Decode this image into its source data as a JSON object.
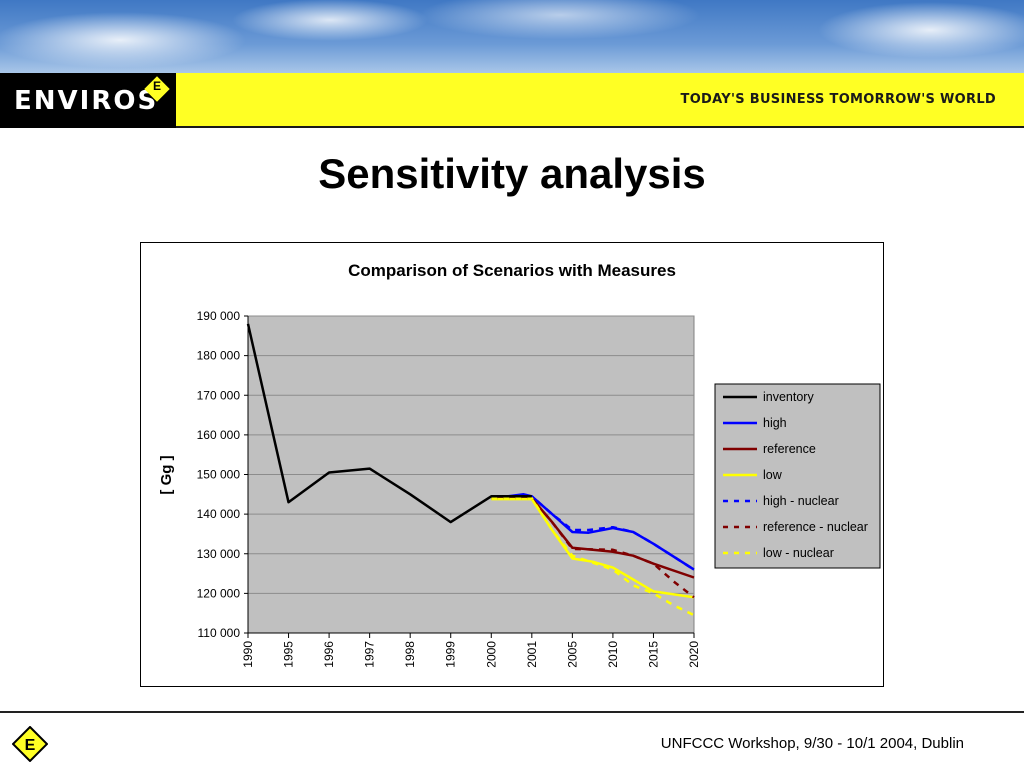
{
  "header": {
    "logo_text": "ENVIROS",
    "logo_badge": "E",
    "tagline": "TODAY'S BUSINESS TOMORROW'S WORLD"
  },
  "slide": {
    "title": "Sensitivity analysis"
  },
  "footer": {
    "text": "UNFCCC Workshop, 9/30 - 10/1 2004, Dublin",
    "logo_badge": "E"
  },
  "chart_data": {
    "type": "line",
    "title": "Comparison of Scenarios with Measures",
    "xlabel": "",
    "ylabel": "[ Gg ]",
    "categories": [
      "1990",
      "1995",
      "1996",
      "1997",
      "1998",
      "1999",
      "2000",
      "2001",
      "2005",
      "2010",
      "2015",
      "2020"
    ],
    "ylim": [
      110000,
      190000
    ],
    "yticks": [
      110000,
      120000,
      130000,
      140000,
      150000,
      160000,
      170000,
      180000,
      190000
    ],
    "ytick_labels": [
      "110 000",
      "120 000",
      "130 000",
      "140 000",
      "150 000",
      "160 000",
      "170 000",
      "180 000",
      "190 000"
    ],
    "grid": true,
    "legend_position": "right",
    "colors": {
      "plot_background": "#c0c0c0",
      "inventory": "#000000",
      "high": "#0000ff",
      "reference": "#800000",
      "low": "#ffff00"
    },
    "series": [
      {
        "name": "inventory",
        "color": "#000000",
        "dash": false,
        "x": [
          0,
          1,
          2,
          3,
          4,
          5,
          6,
          7
        ],
        "values": [
          188000,
          143000,
          150500,
          151500,
          145000,
          138000,
          144500,
          144500
        ]
      },
      {
        "name": "high",
        "color": "#0000ff",
        "dash": false,
        "x": [
          6,
          6.5,
          6.8,
          7,
          7.5,
          8,
          8.4,
          9,
          9.5,
          10,
          11
        ],
        "values": [
          144000,
          144600,
          145000,
          144500,
          140000,
          135500,
          135300,
          136500,
          135500,
          132500,
          126000
        ]
      },
      {
        "name": "reference",
        "color": "#800000",
        "dash": false,
        "x": [
          6,
          7,
          7.5,
          8,
          9,
          9.5,
          10,
          11
        ],
        "values": [
          144000,
          144000,
          138000,
          131500,
          130500,
          129500,
          127500,
          124000
        ]
      },
      {
        "name": "low",
        "color": "#ffff00",
        "dash": false,
        "x": [
          6,
          7,
          7.5,
          8,
          8.5,
          9,
          9.5,
          10,
          11
        ],
        "values": [
          143800,
          143800,
          136000,
          128800,
          128000,
          126500,
          123500,
          120500,
          119000
        ]
      },
      {
        "name": "high - nuclear",
        "color": "#0000ff",
        "dash": true,
        "x": [
          6,
          7,
          7.5,
          8,
          8.4,
          9,
          9.5,
          10,
          11
        ],
        "values": [
          144000,
          144500,
          140000,
          136000,
          136000,
          136700,
          135500,
          132500,
          126000
        ]
      },
      {
        "name": "reference - nuclear",
        "color": "#800000",
        "dash": true,
        "x": [
          6,
          7,
          7.5,
          8,
          9,
          9.5,
          10,
          10.5,
          11
        ],
        "values": [
          144000,
          144000,
          138000,
          131200,
          131000,
          129500,
          127500,
          123000,
          119000
        ]
      },
      {
        "name": "low - nuclear",
        "color": "#ffff00",
        "dash": true,
        "x": [
          6,
          7,
          7.5,
          8,
          9,
          9.5,
          10,
          10.5,
          11
        ],
        "values": [
          144000,
          144000,
          136000,
          129500,
          126000,
          122000,
          120000,
          117000,
          114500
        ]
      }
    ]
  }
}
